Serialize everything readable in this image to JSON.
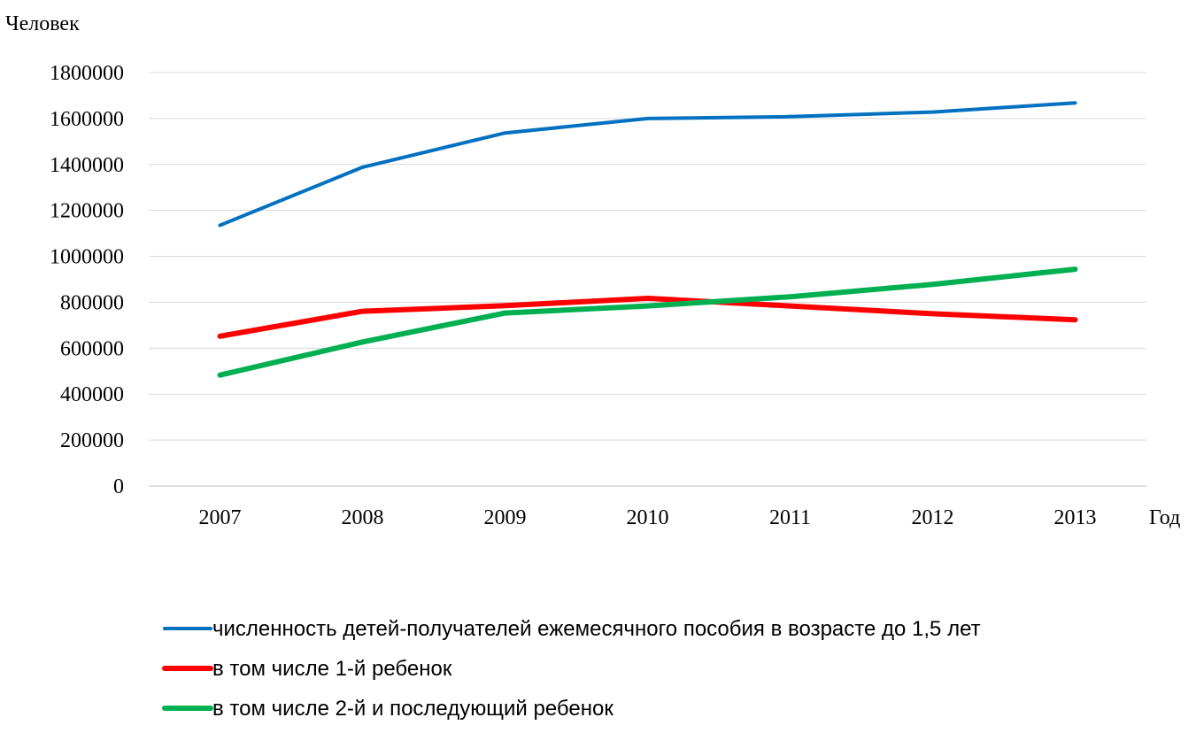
{
  "chart_data": {
    "type": "line",
    "title": "",
    "ylabel": "Человек",
    "xlabel": "Год",
    "categories": [
      "2007",
      "2008",
      "2009",
      "2010",
      "2011",
      "2012",
      "2013"
    ],
    "yticks": [
      "0",
      "200000",
      "400000",
      "600000",
      "800000",
      "1000000",
      "1200000",
      "1400000",
      "1600000",
      "1800000"
    ],
    "ylim": [
      0,
      1800000
    ],
    "grid": true,
    "legend_position": "bottom",
    "series": [
      {
        "name": "численность детей-получателей ежемесячного пособия в возрасте до 1,5 лет",
        "color": "#0070C0",
        "values": [
          1135000,
          1388000,
          1537000,
          1600000,
          1608000,
          1628000,
          1668000
        ]
      },
      {
        "name": "в том числе 1-й ребенок",
        "color": "#FF0000",
        "values": [
          652000,
          761000,
          785000,
          817000,
          784000,
          750000,
          724000
        ]
      },
      {
        "name": "в том числе 2-й и последующий ребенок",
        "color": "#00B050",
        "values": [
          483000,
          627000,
          753000,
          784000,
          824000,
          878000,
          944000
        ]
      }
    ]
  }
}
